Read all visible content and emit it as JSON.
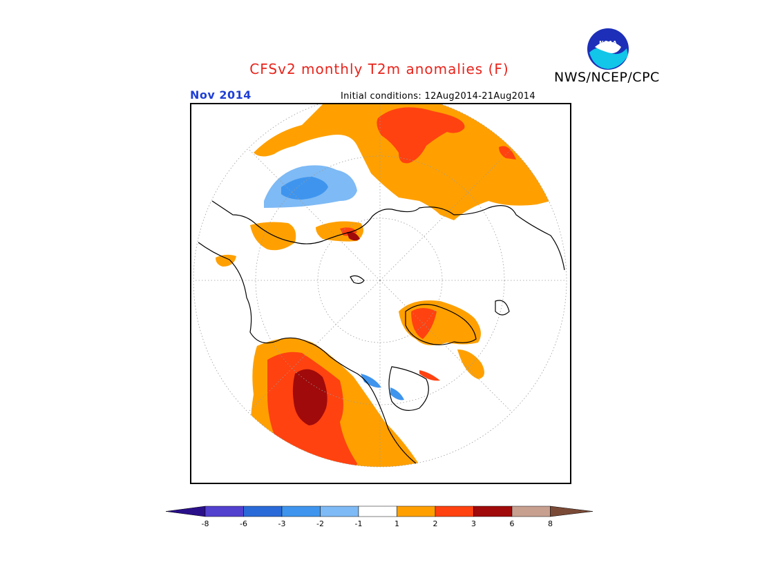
{
  "header": {
    "title": "CFSv2 monthly T2m anomalies (F)",
    "organization": "NWS/NCEP/CPC",
    "logo_text": "NOAA",
    "valid_month": "Nov 2014",
    "initial_conditions": "Initial conditions: 12Aug2014-21Aug2014"
  },
  "map": {
    "projection": "north polar stereographic",
    "colors": {
      "land_outline": "#000000",
      "background": "#ffffff",
      "graticule": "#9a9a9a"
    }
  },
  "colorbar": {
    "ticks": [
      "-8",
      "-6",
      "-3",
      "-2",
      "-1",
      "1",
      "2",
      "3",
      "6",
      "8"
    ],
    "bins": [
      {
        "range": "< -8",
        "color": "#2a0f8a"
      },
      {
        "range": "-8 to -6",
        "color": "#5240cf"
      },
      {
        "range": "-6 to -3",
        "color": "#2a6ad8"
      },
      {
        "range": "-3 to -2",
        "color": "#3f95ee"
      },
      {
        "range": "-2 to -1",
        "color": "#7ebaf5"
      },
      {
        "range": "-1 to 1",
        "color": "#ffffff"
      },
      {
        "range": "1 to 2",
        "color": "#ffa000"
      },
      {
        "range": "2 to 3",
        "color": "#ff4210"
      },
      {
        "range": "3 to 6",
        "color": "#a00a0a"
      },
      {
        "range": "6 to 8",
        "color": "#c8a090"
      },
      {
        "range": "> 8",
        "color": "#7a4a36"
      }
    ]
  }
}
